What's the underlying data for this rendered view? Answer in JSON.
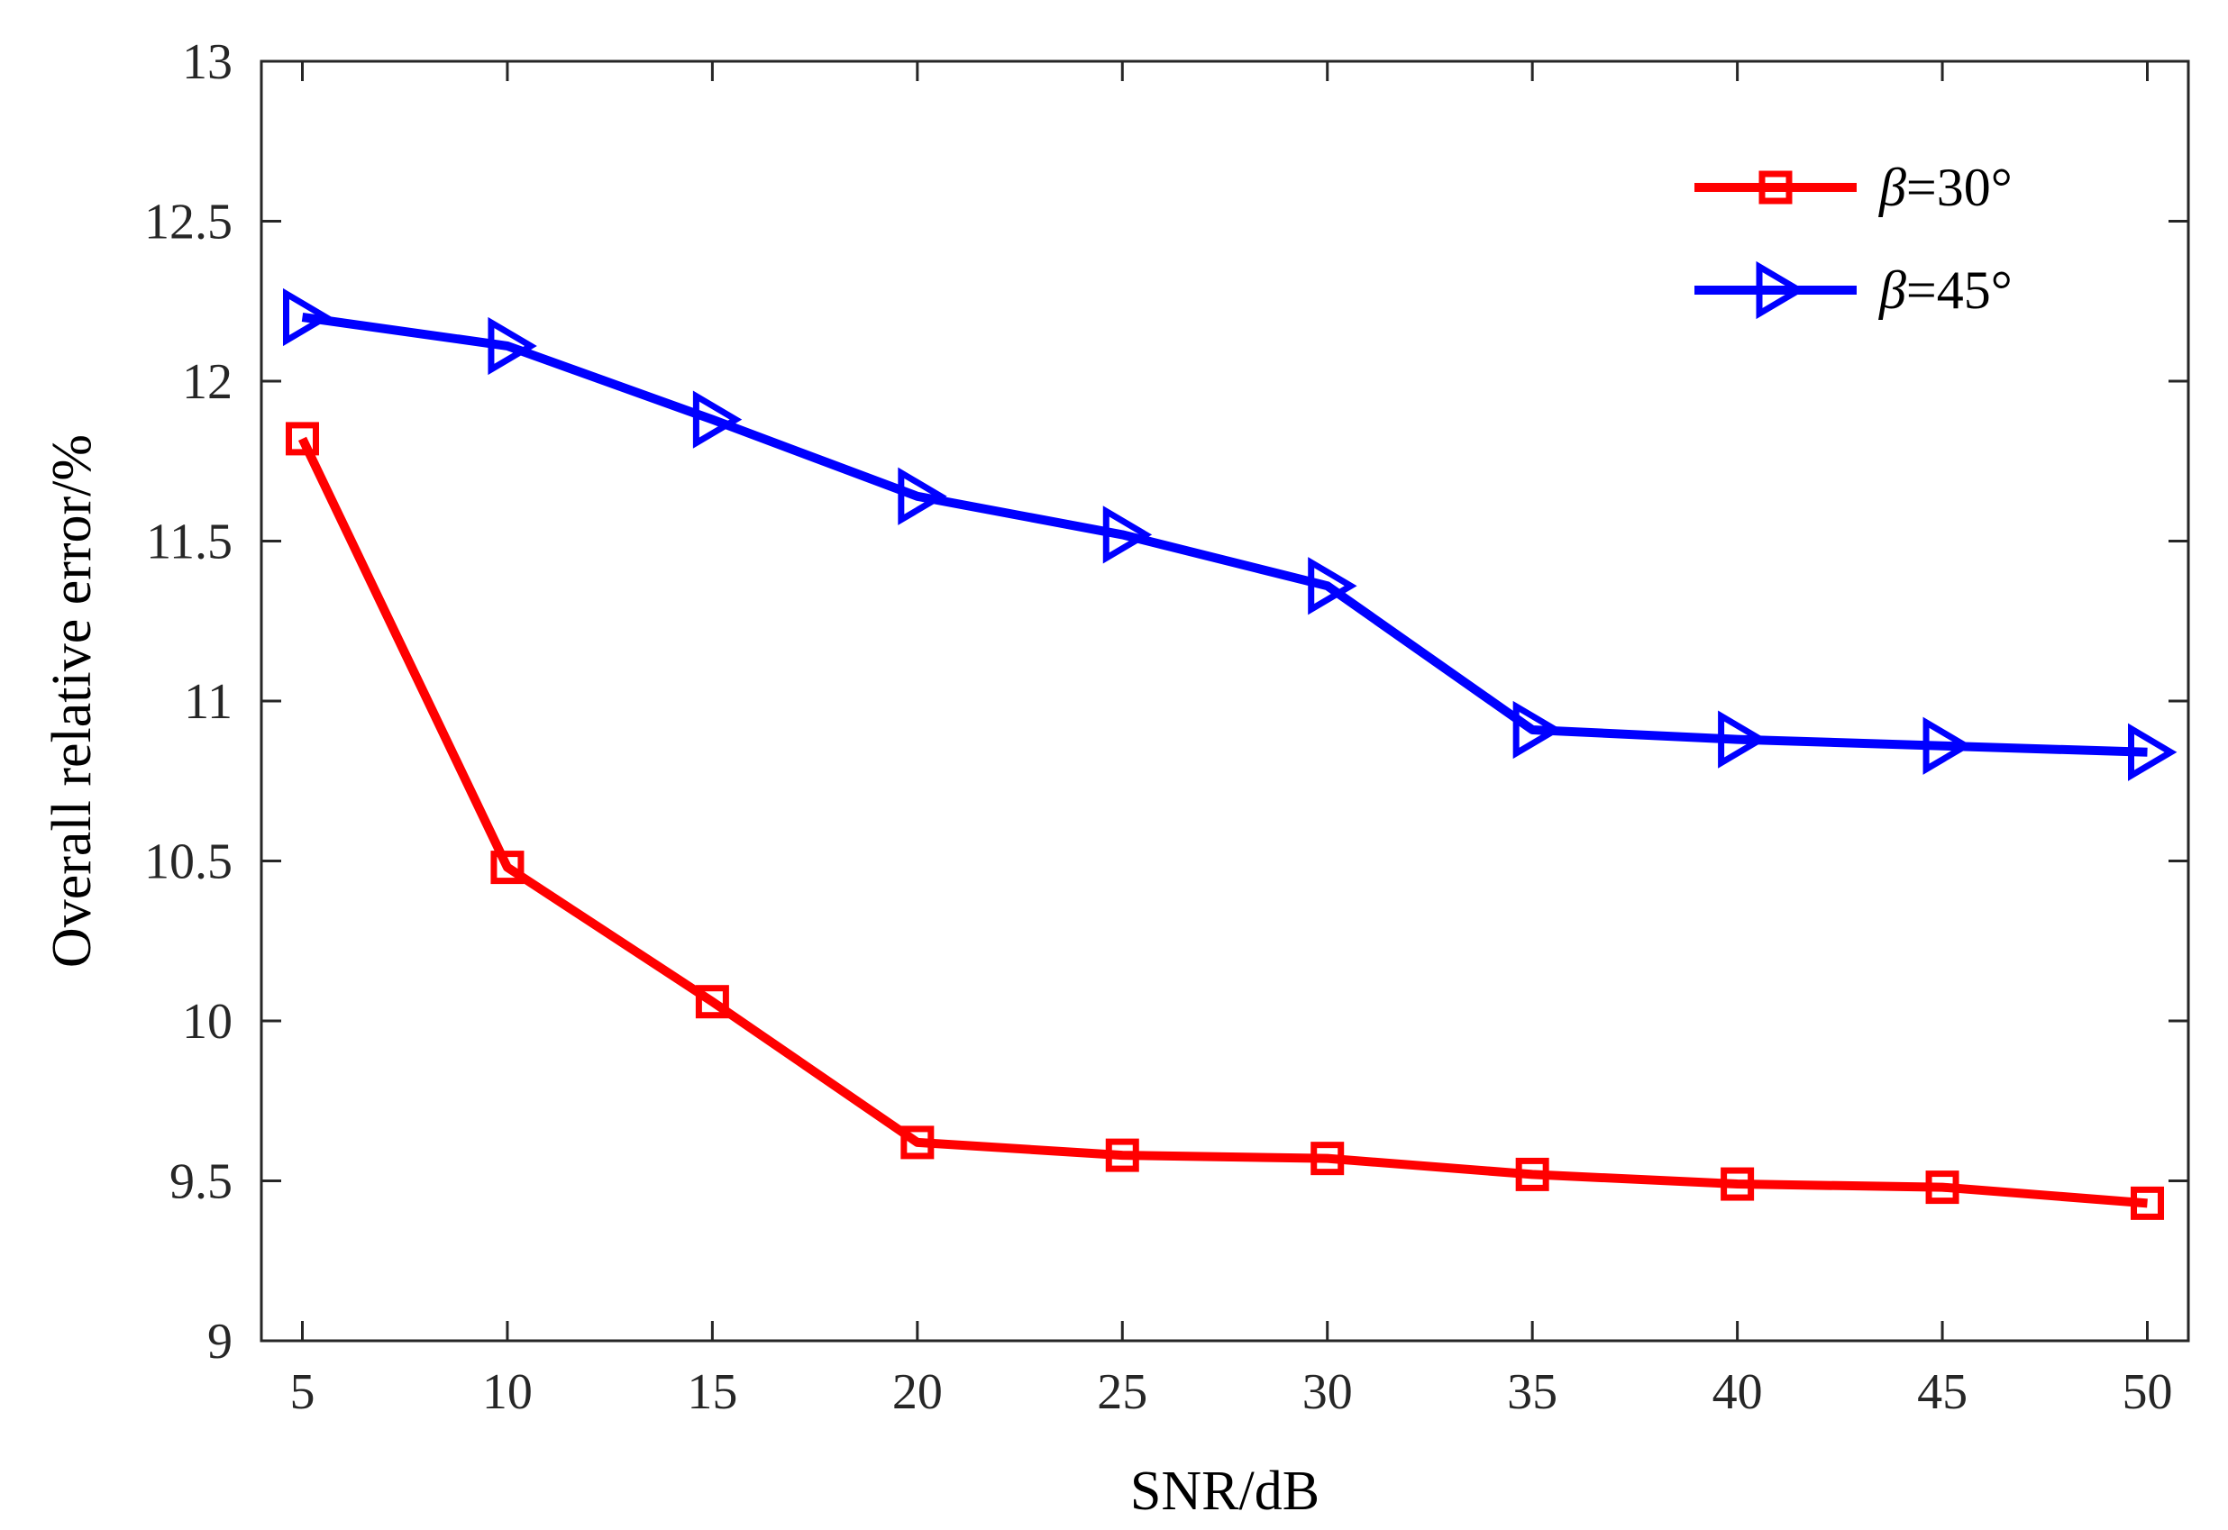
{
  "chart_data": {
    "type": "line",
    "xlabel": "SNR/dB",
    "ylabel": "Overall relative error/%",
    "x": [
      5,
      10,
      15,
      20,
      25,
      30,
      35,
      40,
      45,
      50
    ],
    "xlim": [
      4,
      51
    ],
    "ylim": [
      9,
      13
    ],
    "xticks": [
      5,
      10,
      15,
      20,
      25,
      30,
      35,
      40,
      45,
      50
    ],
    "yticks": [
      9,
      9.5,
      10,
      10.5,
      11,
      11.5,
      12,
      12.5,
      13
    ],
    "xtick_labels": [
      "5",
      "10",
      "15",
      "20",
      "25",
      "30",
      "35",
      "40",
      "45",
      "50"
    ],
    "ytick_labels": [
      "9",
      "9.5",
      "10",
      "10.5",
      "11",
      "11.5",
      "12",
      "12.5",
      "13"
    ],
    "grid": false,
    "legend_position": "top-right",
    "series": [
      {
        "name": "β=30°",
        "name_symbol": "β",
        "name_rest": "=30°",
        "color": "#ff0000",
        "marker": "square",
        "values": [
          11.82,
          10.48,
          10.06,
          9.62,
          9.58,
          9.57,
          9.52,
          9.49,
          9.48,
          9.43
        ]
      },
      {
        "name": "β=45°",
        "name_symbol": "β",
        "name_rest": "=45°",
        "color": "#0000ff",
        "marker": "triangle-right",
        "values": [
          12.2,
          12.11,
          11.88,
          11.64,
          11.52,
          11.36,
          10.91,
          10.88,
          10.86,
          10.84
        ]
      }
    ]
  }
}
